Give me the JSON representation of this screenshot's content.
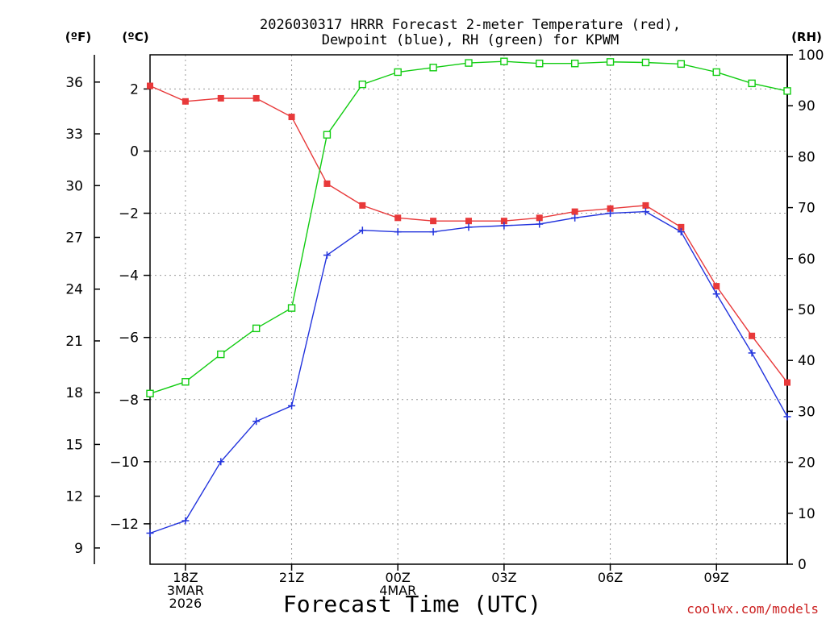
{
  "chart_data": {
    "type": "line",
    "title_line1": "2026030317 HRRR Forecast 2-meter Temperature (red),",
    "title_line2": "Dewpoint (blue), RH (green) for KPWM",
    "xlabel": "Forecast Time (UTC)",
    "watermark": "coolwx.com/models",
    "unit_f": "(ºF)",
    "unit_c": "(ºC)",
    "unit_rh": "(RH)",
    "x_hours": [
      17,
      18,
      19,
      20,
      21,
      22,
      23,
      24,
      25,
      26,
      27,
      28,
      29,
      30,
      31,
      32,
      33,
      34,
      35
    ],
    "x_tick_labels": [
      {
        "hour": 18,
        "lines": [
          "18Z",
          "3MAR",
          "2026"
        ]
      },
      {
        "hour": 21,
        "lines": [
          "21Z"
        ]
      },
      {
        "hour": 24,
        "lines": [
          "00Z",
          "4MAR"
        ]
      },
      {
        "hour": 27,
        "lines": [
          "03Z"
        ]
      },
      {
        "hour": 30,
        "lines": [
          "06Z"
        ]
      },
      {
        "hour": 33,
        "lines": [
          "09Z"
        ]
      }
    ],
    "ylim_c": [
      -13.3,
      3.1
    ],
    "yticks_c": [
      2,
      0,
      -2,
      -4,
      -6,
      -8,
      -10,
      -12
    ],
    "yticks_f": [
      36,
      33,
      30,
      27,
      24,
      21,
      18,
      15,
      12,
      9
    ],
    "ylim_rh": [
      0,
      100
    ],
    "yticks_rh": [
      100,
      90,
      80,
      70,
      60,
      50,
      40,
      30,
      20,
      10,
      0
    ],
    "series": [
      {
        "name": "Temperature",
        "axis": "c",
        "color": "#e8393a",
        "marker": "filled-square",
        "values": [
          2.1,
          1.6,
          1.7,
          1.7,
          1.1,
          -1.05,
          -1.75,
          -2.15,
          -2.25,
          -2.25,
          -2.25,
          -2.15,
          -1.95,
          -1.85,
          -1.75,
          -2.45,
          -4.35,
          -5.95,
          -7.45
        ]
      },
      {
        "name": "Dewpoint",
        "axis": "c",
        "color": "#2233dd",
        "marker": "plus",
        "values": [
          -12.3,
          -11.9,
          -10.0,
          -8.7,
          -8.2,
          -3.35,
          -2.55,
          -2.6,
          -2.6,
          -2.45,
          -2.4,
          -2.35,
          -2.15,
          -2.0,
          -1.95,
          -2.6,
          -4.6,
          -6.5,
          -8.55
        ]
      },
      {
        "name": "RH",
        "axis": "rh",
        "color": "#11cc11",
        "marker": "open-square",
        "values": [
          33.5,
          35.8,
          41.2,
          46.3,
          50.3,
          84.3,
          94.2,
          96.6,
          97.5,
          98.4,
          98.7,
          98.3,
          98.3,
          98.6,
          98.5,
          98.2,
          96.6,
          94.4,
          92.9
        ]
      }
    ]
  }
}
